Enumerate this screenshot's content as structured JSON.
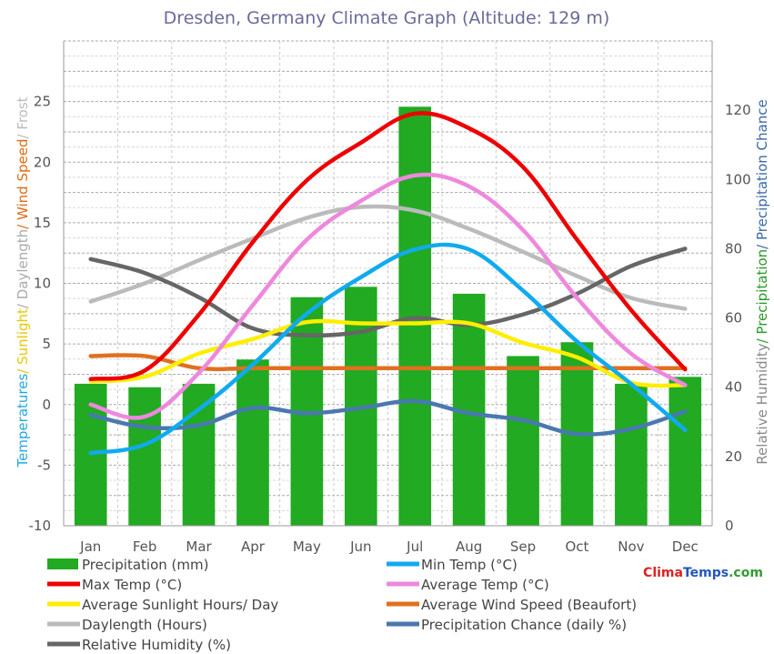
{
  "chart_data": {
    "type": "bar",
    "title": "Dresden, Germany Climate Graph (Altitude: 129 m)",
    "categories": [
      "Jan",
      "Feb",
      "Mar",
      "Apr",
      "May",
      "Jun",
      "Jul",
      "Aug",
      "Sep",
      "Oct",
      "Nov",
      "Dec"
    ],
    "y_left": {
      "label_parts": [
        {
          "text": "Temperatures",
          "color": "#22aadd"
        },
        {
          "text": "/ Sunlight",
          "color": "#e6c800"
        },
        {
          "text": "/ Daylength",
          "color": "#aaaaaa"
        },
        {
          "text": "/ Wind Speed",
          "color": "#e06a10"
        },
        {
          "text": "/ Frost",
          "color": "#bbbbbb"
        }
      ],
      "ylim": [
        -10,
        30
      ],
      "ticks": [
        "-10",
        "-5",
        "0",
        "5",
        "10",
        "15",
        "20",
        "25"
      ],
      "tick_values": [
        -10,
        -5,
        0,
        5,
        10,
        15,
        20,
        25
      ]
    },
    "y_right": {
      "label_parts": [
        {
          "text": "Relative Humidity",
          "color": "#888888"
        },
        {
          "text": "/ Precipitation",
          "color": "#2a9a2a"
        },
        {
          "text": "/ Precipitation Chance",
          "color": "#3a6aa8"
        }
      ],
      "ylim": [
        0,
        140
      ],
      "ticks": [
        "0",
        "20",
        "40",
        "60",
        "80",
        "100",
        "120"
      ],
      "tick_values": [
        0,
        20,
        40,
        60,
        80,
        100,
        120
      ]
    },
    "grid": true,
    "legend_position": "bottom",
    "bars": {
      "name": "Precipitation (mm)",
      "color": "#22aa22",
      "axis": "right",
      "values": [
        41,
        40,
        41,
        48,
        66,
        69,
        121,
        67,
        49,
        53,
        41,
        43
      ]
    },
    "series": [
      {
        "name": "Min Temp (°C)",
        "color": "#11aaee",
        "axis": "left",
        "values": [
          -4,
          -3.3,
          -0.4,
          3.3,
          7.5,
          10.5,
          12.8,
          12.8,
          9.4,
          5.2,
          1.7,
          -2.1
        ]
      },
      {
        "name": "Max Temp (°C)",
        "color": "#ee0000",
        "axis": "left",
        "values": [
          2.1,
          2.8,
          7.4,
          13.4,
          18.5,
          21.6,
          24,
          22.8,
          19.6,
          13.6,
          7.8,
          2.9
        ]
      },
      {
        "name": "Average Temp (°C)",
        "color": "#ee88dd",
        "axis": "left",
        "values": [
          0,
          -1,
          2.6,
          8.2,
          13.6,
          16.8,
          18.9,
          18,
          14.4,
          8.8,
          4.2,
          1.6
        ]
      },
      {
        "name": "Average Sunlight Hours/ Day",
        "color": "#ffee00",
        "axis": "left",
        "values": [
          1.9,
          2.3,
          4.2,
          5.4,
          6.8,
          6.7,
          6.7,
          6.7,
          5.1,
          3.9,
          1.8,
          1.6
        ]
      },
      {
        "name": "Average Wind Speed (Beaufort)",
        "color": "#e07020",
        "axis": "left",
        "values": [
          4,
          4,
          3,
          3,
          3,
          3,
          3,
          3,
          3,
          3,
          3,
          3
        ]
      },
      {
        "name": "Daylength (Hours)",
        "color": "#bbbbbb",
        "axis": "left",
        "values": [
          8.5,
          10,
          11.9,
          13.7,
          15.4,
          16.3,
          16,
          14.5,
          12.6,
          10.6,
          8.8,
          7.9
        ]
      },
      {
        "name": "Precipitation Chance (daily %)",
        "color": "#4a78b0",
        "axis": "right",
        "values": [
          32,
          28.5,
          29,
          34,
          32.5,
          34,
          36,
          32.5,
          30.5,
          26.5,
          28,
          33
        ]
      },
      {
        "name": "Relative Humidity (%)",
        "color": "#666666",
        "axis": "right",
        "values": [
          77,
          73,
          66,
          57,
          55,
          56,
          60,
          58,
          61,
          67,
          75,
          80
        ]
      }
    ],
    "brand": {
      "part1": "Clima",
      "part1_color": "#dd2222",
      "part2": "Temps",
      "part2_color": "#2255bb",
      "part3": ".com",
      "part3_color": "#339933"
    }
  }
}
